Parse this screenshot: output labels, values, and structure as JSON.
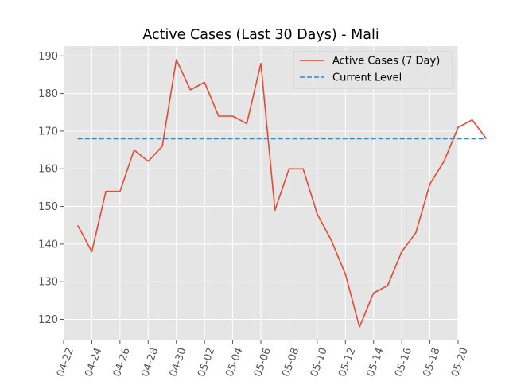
{
  "chart_data": {
    "type": "line",
    "title": "Active Cases (Last 30 Days) - Mali",
    "xlabel": "",
    "ylabel": "",
    "x_tick_labels": [
      "04-22",
      "04-24",
      "04-26",
      "04-28",
      "04-30",
      "05-02",
      "05-04",
      "05-06",
      "05-08",
      "05-10",
      "05-12",
      "05-14",
      "05-16",
      "05-18",
      "05-20"
    ],
    "y_ticks": [
      120,
      130,
      140,
      150,
      160,
      170,
      180,
      190
    ],
    "ylim": [
      114.4,
      192.6
    ],
    "xlim": [
      "04-22",
      "05-20"
    ],
    "grid": true,
    "legend_position": "top-right",
    "series": [
      {
        "name": "Active Cases (7 Day)",
        "color": "#e24a33",
        "style": "solid",
        "x": [
          "04-23",
          "04-24",
          "04-25",
          "04-26",
          "04-27",
          "04-28",
          "04-29",
          "04-30",
          "05-01",
          "05-02",
          "05-03",
          "05-04",
          "05-05",
          "05-06",
          "05-07",
          "05-08",
          "05-09",
          "05-10",
          "05-11",
          "05-12",
          "05-13",
          "05-14",
          "05-15",
          "05-16",
          "05-17",
          "05-18",
          "05-19",
          "05-20",
          "05-21",
          "05-22"
        ],
        "values": [
          145,
          138,
          154,
          154,
          165,
          162,
          166,
          189,
          181,
          183,
          174,
          174,
          172,
          188,
          149,
          160,
          160,
          148,
          141,
          132,
          118,
          127,
          129,
          138,
          143,
          156,
          162,
          171,
          173,
          168
        ]
      },
      {
        "name": "Current Level",
        "color": "#348abd",
        "style": "dashed",
        "x": [
          "04-23",
          "05-22"
        ],
        "values": [
          168,
          168
        ]
      }
    ]
  }
}
